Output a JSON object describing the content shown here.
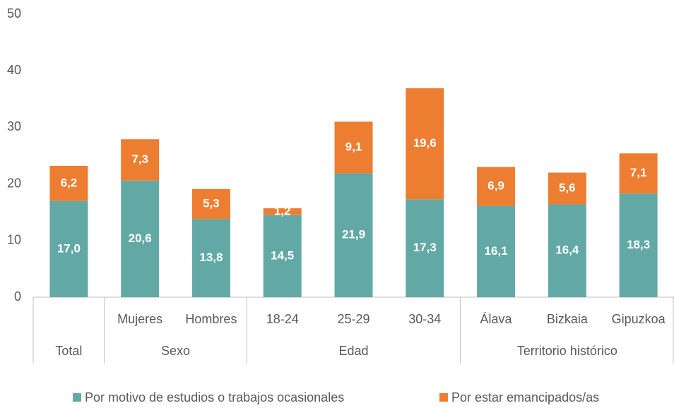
{
  "chart_data": {
    "type": "stacked_bar",
    "categories": [
      null,
      "Mujeres",
      "Hombres",
      "18-24",
      "25-29",
      "30-34",
      "Álava",
      "Bizkaia",
      "Gipuzkoa"
    ],
    "groups": [
      {
        "name": "Total",
        "size": 1
      },
      {
        "name": "Sexo",
        "size": 2
      },
      {
        "name": "Edad",
        "size": 3
      },
      {
        "name": "Territorio histórico",
        "size": 3
      }
    ],
    "series": [
      {
        "name": "Por motivo de estudios o trabajos ocasionales",
        "color": "#62a9a6",
        "values": [
          17.0,
          20.6,
          13.8,
          14.5,
          21.9,
          17.3,
          16.1,
          16.4,
          18.3
        ],
        "value_labels": [
          "17,0",
          "20,6",
          "13,8",
          "14,5",
          "21,9",
          "17,3",
          "16,1",
          "16,4",
          "18,3"
        ]
      },
      {
        "name": "Por estar emancipados/as",
        "color": "#ed7d31",
        "values": [
          6.2,
          7.3,
          5.3,
          1.2,
          9.1,
          19.6,
          6.9,
          5.6,
          7.1
        ],
        "value_labels": [
          "6,2",
          "7,3",
          "5,3",
          "1,2",
          "9,1",
          "19,6",
          "6,9",
          "5,6",
          "7,1"
        ]
      }
    ],
    "ylim": [
      0,
      50
    ],
    "yticks": [
      0,
      10,
      20,
      30,
      40,
      50
    ],
    "grid": false,
    "legend": "bottom"
  }
}
